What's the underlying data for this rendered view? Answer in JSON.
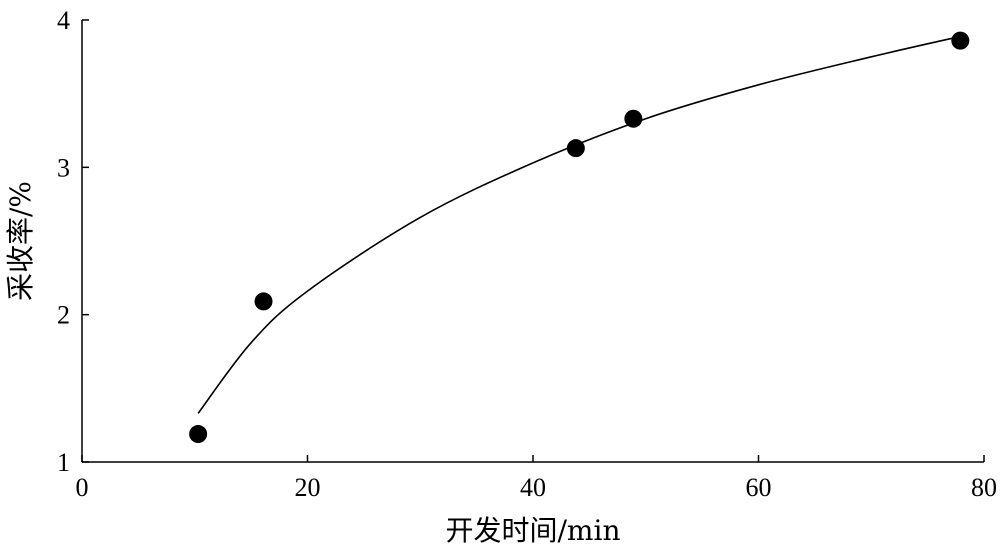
{
  "chart_data": {
    "type": "scatter",
    "title": "",
    "xlabel": "开发时间/min",
    "ylabel": "采收率/%",
    "xlim": [
      0,
      80
    ],
    "ylim": [
      1,
      4
    ],
    "xticks": [
      0,
      20,
      40,
      60,
      80
    ],
    "yticks": [
      1,
      2,
      3,
      4
    ],
    "xtick_labels": [
      "0",
      "20",
      "40",
      "60",
      "80"
    ],
    "ytick_labels": [
      "1",
      "2",
      "3",
      "4"
    ],
    "grid": false,
    "legend": "none",
    "series": [
      {
        "kind": "points",
        "x": [
          10.3,
          16.1,
          43.8,
          48.9,
          77.9
        ],
        "y": [
          1.19,
          2.09,
          3.13,
          3.33,
          3.86
        ]
      },
      {
        "kind": "fitted-curve",
        "x": [
          10.3,
          15,
          20,
          30,
          40,
          50,
          60,
          70,
          78
        ],
        "y": [
          1.33,
          1.81,
          2.16,
          2.66,
          3.03,
          3.33,
          3.56,
          3.75,
          3.89
        ]
      }
    ],
    "colors": {
      "axis": "#000000",
      "points": "#000000",
      "curve": "#000000"
    }
  }
}
